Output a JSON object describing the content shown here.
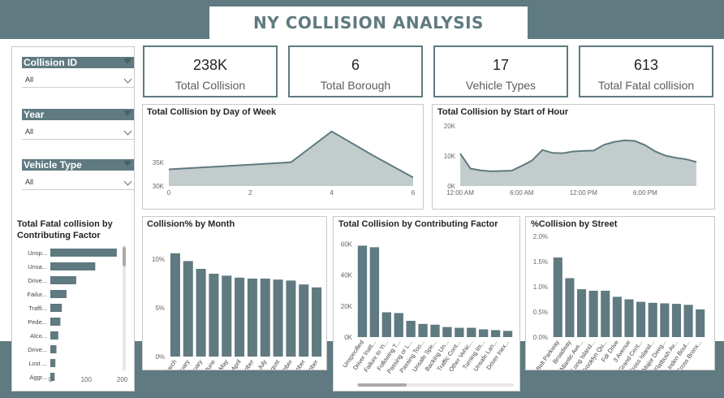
{
  "page": {
    "title": "NY COLLISION ANALYSIS"
  },
  "kpis": [
    {
      "value": "238K",
      "label": "Total Collision"
    },
    {
      "value": "6",
      "label": "Total Borough"
    },
    {
      "value": "17",
      "label": "Vehicle Types"
    },
    {
      "value": "613",
      "label": "Total Fatal collision"
    }
  ],
  "slicers": [
    {
      "label": "Collision ID",
      "value": "All"
    },
    {
      "label": "Year",
      "value": "All"
    },
    {
      "label": "Vehicle Type",
      "value": "All"
    }
  ],
  "colors": {
    "primary": "#5f7a80",
    "area_fill": "#c2cccc"
  },
  "chart_data": [
    {
      "id": "day_of_week",
      "type": "area",
      "title": "Total Collision by Day of Week",
      "x": [
        0,
        1,
        2,
        3,
        4,
        5,
        6
      ],
      "values": [
        33500,
        34000,
        34500,
        35000,
        41500,
        36500,
        31800
      ],
      "xticks": [
        "0",
        "2",
        "4",
        "6"
      ],
      "yticks": [
        "30K",
        "35K"
      ],
      "ylim": [
        30000,
        43000
      ]
    },
    {
      "id": "hour",
      "type": "area",
      "title": "Total Collision by Start of Hour",
      "x": [
        0,
        1,
        2,
        3,
        4,
        5,
        6,
        7,
        8,
        9,
        10,
        11,
        12,
        13,
        14,
        15,
        16,
        17,
        18,
        19,
        20,
        21,
        22,
        23
      ],
      "values": [
        10800,
        5800,
        5200,
        4900,
        5000,
        5100,
        6700,
        8500,
        12000,
        11000,
        10900,
        11500,
        11700,
        11800,
        13700,
        14700,
        15200,
        15000,
        13600,
        11500,
        10100,
        9400,
        8900,
        8000
      ],
      "xticks": [
        "12:00 AM",
        "6:00 AM",
        "12:00 PM",
        "6:00 PM"
      ],
      "yticks": [
        "0K",
        "10K",
        "20K"
      ],
      "ylim": [
        0,
        20000
      ]
    },
    {
      "id": "month",
      "type": "bar",
      "title": "Collision% by Month",
      "categories": [
        "March",
        "January",
        "February",
        "June",
        "May",
        "April",
        "October",
        "July",
        "August",
        "September",
        "November",
        "December"
      ],
      "values": [
        10.6,
        9.8,
        9.0,
        8.5,
        8.3,
        8.1,
        8.0,
        8.0,
        7.9,
        7.8,
        7.4,
        7.1
      ],
      "yticks": [
        "0%",
        "5%",
        "10%"
      ],
      "ylim": [
        0,
        12
      ]
    },
    {
      "id": "factor",
      "type": "bar",
      "title": "Total Collision by Contributing Factor",
      "categories": [
        "Unspecified",
        "Driver Inatt...",
        "Failure to Yi...",
        "Following T...",
        "Passing or L...",
        "Passing Too...",
        "Unsafe Spe...",
        "Backing Un...",
        "Traffic Cont...",
        "Other Vehic...",
        "Turning Im...",
        "Unsafe Lan...",
        "Driver Inex..."
      ],
      "values": [
        59000,
        58000,
        16000,
        15500,
        10500,
        8500,
        8000,
        6500,
        6000,
        6000,
        5000,
        4500,
        4000
      ],
      "yticks": [
        "0K",
        "20K",
        "40K",
        "60K"
      ],
      "ylim": [
        0,
        65000
      ]
    },
    {
      "id": "street",
      "type": "bar",
      "title": "%Collision by Street",
      "categories": [
        "Belt Parkway",
        "Broadway",
        "Atlantic Ave...",
        "Long Island...",
        "Brooklyn Qu...",
        "Fdr Drive",
        "3 Avenue",
        "Grand Cent...",
        "Cross Island...",
        "Major Deeg...",
        "Flatbush Av...",
        "Linden Boul...",
        "Cross Bronx..."
      ],
      "values": [
        1.58,
        1.17,
        0.95,
        0.92,
        0.92,
        0.8,
        0.75,
        0.7,
        0.68,
        0.67,
        0.66,
        0.64,
        0.55
      ],
      "yticks": [
        "0.0%",
        "0.5%",
        "1.0%",
        "1.5%",
        "2.0%"
      ],
      "ylim": [
        0,
        2.0
      ]
    },
    {
      "id": "fatal",
      "type": "bar",
      "orientation": "horizontal",
      "title": "Total Fatal collision by Contributing Factor",
      "categories": [
        "Unsp...",
        "Unsa...",
        "Drive...",
        "Failur...",
        "Traffi...",
        "Pede...",
        "Alco...",
        "Drive...",
        "Lost ...",
        "Aggr..."
      ],
      "values": [
        185,
        125,
        72,
        45,
        32,
        28,
        22,
        17,
        14,
        12
      ],
      "xticks": [
        "0",
        "100",
        "200"
      ],
      "xlim": [
        0,
        210
      ]
    }
  ]
}
